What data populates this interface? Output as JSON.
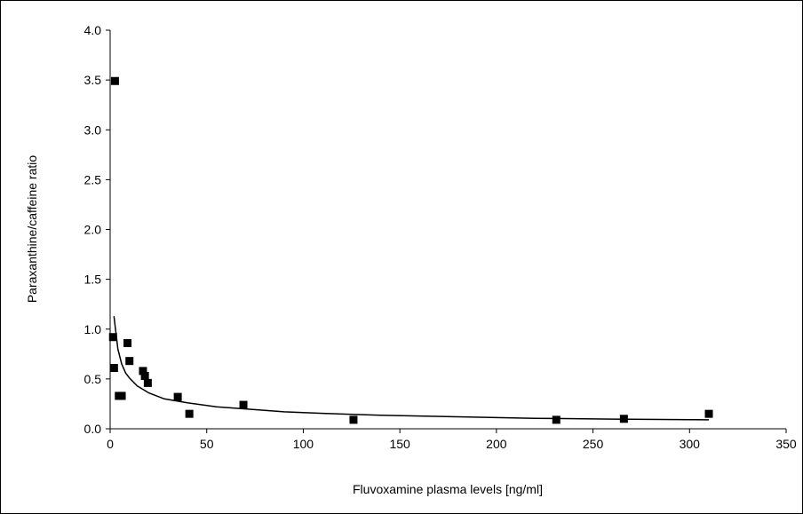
{
  "chart_data": {
    "type": "scatter",
    "title": "",
    "xlabel": "Fluvoxamine plasma levels [ng/ml]",
    "ylabel": "Paraxanthine/caffeine ratio",
    "xlim": [
      0,
      350
    ],
    "ylim": [
      0,
      4.0
    ],
    "x_ticks": [
      "0",
      "50",
      "100",
      "150",
      "200",
      "250",
      "300",
      "350"
    ],
    "y_ticks": [
      "0.0",
      "0.5",
      "1.0",
      "1.5",
      "2.0",
      "2.5",
      "3.0",
      "3.5",
      "4.0"
    ],
    "grid": false,
    "legend": "none",
    "marker_color": "#000000",
    "line_color": "#000000",
    "series": [
      {
        "kind": "points",
        "marker": "square",
        "x": [
          2.5,
          1.5,
          2,
          4.5,
          6,
          9,
          10,
          17,
          18,
          19.5,
          35,
          41,
          69,
          126,
          231,
          266,
          310
        ],
        "y": [
          3.49,
          0.92,
          0.61,
          0.33,
          0.33,
          0.86,
          0.68,
          0.58,
          0.53,
          0.46,
          0.32,
          0.15,
          0.24,
          0.09,
          0.09,
          0.1,
          0.15
        ]
      },
      {
        "kind": "trendline",
        "x": [
          2,
          4,
          6,
          8,
          10,
          14,
          20,
          28,
          40,
          55,
          70,
          90,
          110,
          140,
          180,
          220,
          260,
          310
        ],
        "y": [
          1.13,
          0.8,
          0.65,
          0.56,
          0.51,
          0.43,
          0.36,
          0.3,
          0.26,
          0.22,
          0.2,
          0.17,
          0.155,
          0.135,
          0.12,
          0.105,
          0.097,
          0.09
        ]
      }
    ]
  }
}
